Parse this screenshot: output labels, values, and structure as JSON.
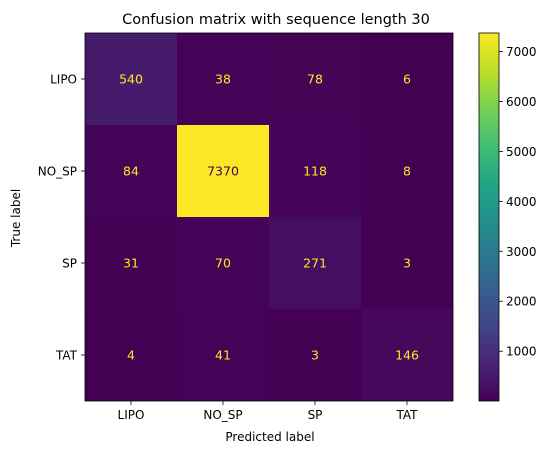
{
  "chart_data": {
    "type": "heatmap",
    "title": "Confusion matrix with sequence length 30",
    "xlabel": "Predicted label",
    "ylabel": "True label",
    "x_categories": [
      "LIPO",
      "NO_SP",
      "SP",
      "TAT"
    ],
    "y_categories": [
      "LIPO",
      "NO_SP",
      "SP",
      "TAT"
    ],
    "matrix": [
      [
        540,
        38,
        78,
        6
      ],
      [
        84,
        7370,
        118,
        8
      ],
      [
        31,
        70,
        271,
        3
      ],
      [
        4,
        41,
        3,
        146
      ]
    ],
    "colormap": "viridis",
    "colorbar": {
      "range": [
        3,
        7370
      ],
      "ticks": [
        1000,
        2000,
        3000,
        4000,
        5000,
        6000,
        7000
      ]
    },
    "text_colors": {
      "on_dark": "#fde725",
      "on_light": "#440154"
    }
  }
}
